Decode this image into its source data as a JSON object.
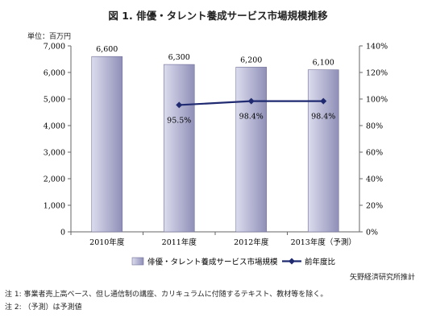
{
  "title": "図 1.  俳優・タレント養成サービス市場規模推移",
  "unit_label": "単位：百万円",
  "source": "矢野経済研究所推計",
  "notes": [
    "注 1:  事業者売上高ベース、但し通信制の講座、カリキュラムに付随するテキスト、教材等を除く。",
    "注 2:  （予測）は予測値"
  ],
  "colors": {
    "bar_light": "#dcdcee",
    "bar_dark": "#8f8fb8",
    "bar_stroke": "#6f6f98",
    "line": "#1f2a70",
    "axis": "#666666"
  },
  "chart_data": {
    "type": "bar",
    "categories": [
      "2010年度",
      "2011年度",
      "2012年度",
      "2013年度（予測）"
    ],
    "series": [
      {
        "name": "俳優・タレント養成サービス市場規模",
        "type": "bar",
        "axis": "left",
        "values": [
          6600,
          6300,
          6200,
          6100
        ],
        "labels": [
          "6,600",
          "6,300",
          "6,200",
          "6,100"
        ]
      },
      {
        "name": "前年度比",
        "type": "line",
        "axis": "right",
        "values": [
          null,
          95.5,
          98.4,
          98.4
        ],
        "labels": [
          "",
          "95.5%",
          "98.4%",
          "98.4%"
        ]
      }
    ],
    "y_left": {
      "min": 0,
      "max": 7000,
      "step": 1000,
      "ticks": [
        "0",
        "1,000",
        "2,000",
        "3,000",
        "4,000",
        "5,000",
        "6,000",
        "7,000"
      ]
    },
    "y_right": {
      "min": 0,
      "max": 140,
      "step": 20,
      "ticks": [
        "0%",
        "20%",
        "40%",
        "60%",
        "80%",
        "100%",
        "120%",
        "140%"
      ]
    },
    "legend": [
      "俳優・タレント養成サービス市場規模",
      "前年度比"
    ],
    "legend_position": "bottom",
    "grid": false
  }
}
